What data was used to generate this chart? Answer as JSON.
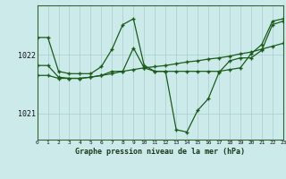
{
  "title": "Graphe pression niveau de la mer (hPa)",
  "bg_color": "#cceaea",
  "grid_color": "#aacccc",
  "line_color": "#1a5c1a",
  "xlim": [
    0,
    23
  ],
  "ylim": [
    1020.55,
    1022.85
  ],
  "yticks": [
    1021,
    1022
  ],
  "xticks": [
    0,
    1,
    2,
    3,
    4,
    5,
    6,
    7,
    8,
    9,
    10,
    11,
    12,
    13,
    14,
    15,
    16,
    17,
    18,
    19,
    20,
    21,
    22,
    23
  ],
  "s1": [
    1022.3,
    1022.3,
    1021.72,
    1021.68,
    1021.68,
    1021.68,
    1021.8,
    1022.1,
    1022.52,
    1022.62,
    1021.82,
    1021.72,
    1021.72,
    1021.72,
    1021.72,
    1021.72,
    1021.72,
    1021.72,
    1021.75,
    1021.78,
    1022.02,
    1022.18,
    1022.58,
    1022.62
  ],
  "s2": [
    1021.82,
    1021.82,
    1021.62,
    1021.6,
    1021.6,
    1021.62,
    1021.65,
    1021.72,
    1021.72,
    1022.12,
    1021.78,
    1021.72,
    1021.72,
    1020.72,
    1020.68,
    1021.05,
    1021.25,
    1021.7,
    1021.9,
    1021.95,
    1021.95,
    1022.08,
    1022.52,
    1022.58
  ],
  "s3": [
    1021.65,
    1021.65,
    1021.6,
    1021.6,
    1021.6,
    1021.62,
    1021.65,
    1021.68,
    1021.72,
    1021.75,
    1021.78,
    1021.8,
    1021.82,
    1021.85,
    1021.88,
    1021.9,
    1021.93,
    1021.95,
    1021.98,
    1022.02,
    1022.05,
    1022.1,
    1022.15,
    1022.2
  ]
}
